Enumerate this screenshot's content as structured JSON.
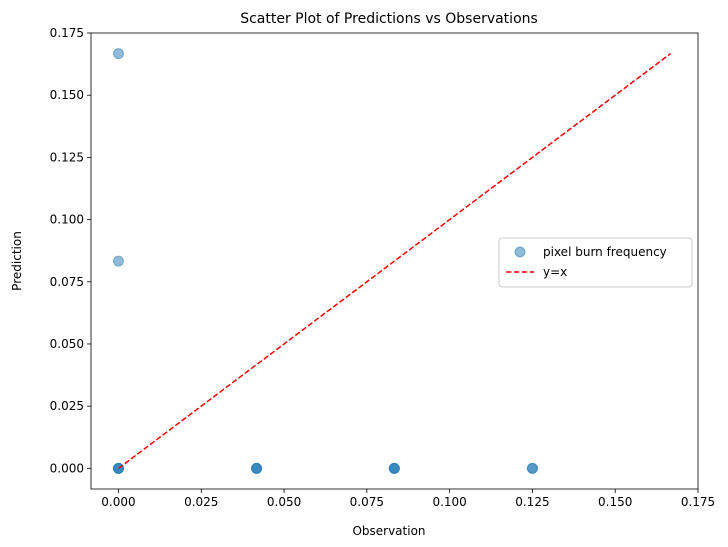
{
  "chart_data": {
    "type": "scatter",
    "title": "Scatter Plot of Predictions vs Observations",
    "xlabel": "Observation",
    "ylabel": "Prediction",
    "xlim": [
      -0.0083,
      0.175
    ],
    "ylim": [
      -0.0083,
      0.175
    ],
    "xticks": [
      "0.000",
      "0.025",
      "0.050",
      "0.075",
      "0.100",
      "0.125",
      "0.150",
      "0.175"
    ],
    "yticks": [
      "0.000",
      "0.025",
      "0.050",
      "0.075",
      "0.100",
      "0.125",
      "0.150",
      "0.175"
    ],
    "grid": false,
    "legend": {
      "placement": "center-right",
      "entries": [
        "pixel burn frequency",
        "y=x"
      ]
    },
    "series": [
      {
        "name": "pixel burn frequency",
        "kind": "scatter",
        "color": "#1f77b4",
        "points": [
          [
            0.0,
            0.1667
          ],
          [
            0.0,
            0.0833
          ],
          [
            0.0,
            0.0
          ],
          [
            0.0,
            0.0
          ],
          [
            0.0,
            0.0
          ],
          [
            0.0417,
            0.0
          ],
          [
            0.0417,
            0.0
          ],
          [
            0.0417,
            0.0
          ],
          [
            0.0833,
            0.0
          ],
          [
            0.0833,
            0.0
          ],
          [
            0.0833,
            0.0
          ],
          [
            0.125,
            0.0
          ],
          [
            0.125,
            0.0
          ]
        ]
      },
      {
        "name": "y=x",
        "kind": "line",
        "color": "#ff0000",
        "dash": true,
        "points": [
          [
            0.0,
            0.0
          ],
          [
            0.1667,
            0.1667
          ]
        ]
      }
    ]
  }
}
